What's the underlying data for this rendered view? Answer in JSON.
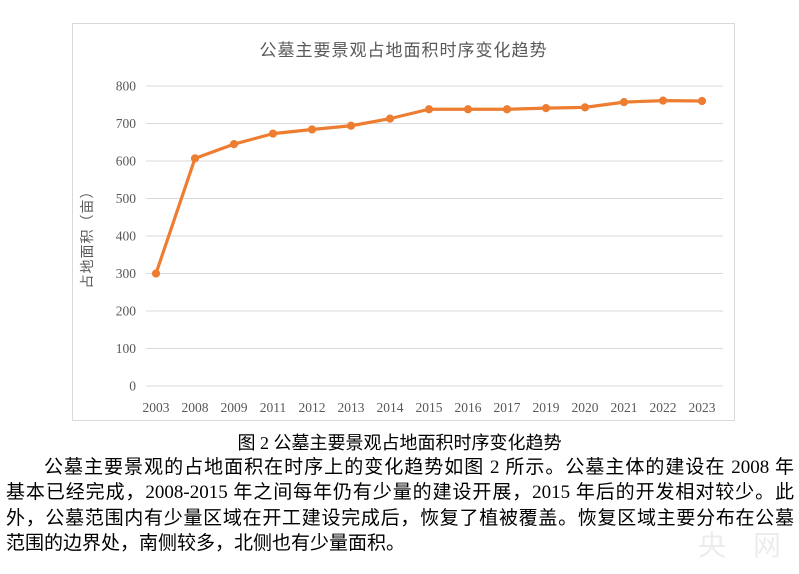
{
  "chart_data": {
    "type": "line",
    "title": "公墓主要景观占地面积时序变化趋势",
    "xlabel": "",
    "ylabel": "占地面积（亩）",
    "categories": [
      "2003",
      "2008",
      "2009",
      "2011",
      "2012",
      "2013",
      "2014",
      "2015",
      "2016",
      "2017",
      "2019",
      "2020",
      "2021",
      "2022",
      "2023"
    ],
    "series": [
      {
        "name": "占地面积",
        "values": [
          300,
          607,
          645,
          673,
          684,
          694,
          713,
          738,
          738,
          738,
          741,
          743,
          757,
          761,
          760
        ]
      }
    ],
    "ylim": [
      0,
      800
    ],
    "ytick_step": 100,
    "grid": true,
    "legend": "none"
  },
  "figure_caption": "图 2  公墓主要景观占地面积时序变化趋势",
  "paragraph": {
    "lines": [
      "公墓主要景观的占地面积在时序上的变化趋势如图 2 所示。公墓主体的建设在 2008 年",
      "基本已经完成，2008-2015 年之间每年仍有少量的建设开展，2015 年后的开发相对较少。此",
      "外，公墓范围内有少量区域在开工建设完成后，恢复了植被覆盖。恢复区域主要分布在公墓",
      "范围的边界处，南侧较多，北侧也有少量面积。"
    ]
  },
  "watermark": {
    "text": "央 网"
  },
  "colors": {
    "line": "#ED7D31",
    "grid": "#D9D9D9",
    "chart_text": "#595959",
    "body_text": "#000000"
  }
}
